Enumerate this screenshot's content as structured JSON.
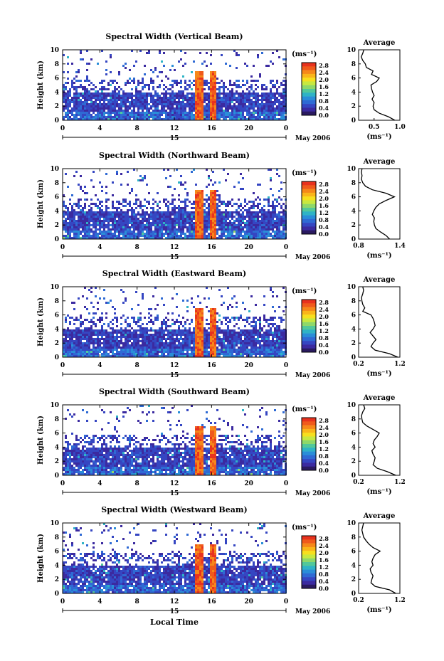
{
  "page": {
    "x_axis_title": "Local Time",
    "date_label": "May 2006",
    "day_label": "15"
  },
  "colorbar": {
    "unit": "(ms⁻¹)",
    "ticks": [
      "2.8",
      "2.4",
      "2.0",
      "1.6",
      "1.2",
      "0.8",
      "0.4",
      "0.0"
    ],
    "colors": [
      "#e8321e",
      "#f05a1c",
      "#f6881a",
      "#fab51a",
      "#f7df1e",
      "#c8e840",
      "#8ed86a",
      "#52c89a",
      "#2fb3c6",
      "#2a8ed8",
      "#2f6ad4",
      "#3546c2",
      "#3b2aa0",
      "#2a1a60"
    ]
  },
  "chart_data": [
    {
      "type": "heatmap",
      "title": "Spectral Width (Vertical Beam)",
      "xlabel": "",
      "ylabel": "Height (km)",
      "xlim": [
        0,
        24
      ],
      "ylim": [
        0,
        10
      ],
      "xticks": [
        "0",
        "4",
        "8",
        "12",
        "16",
        "20",
        "0"
      ],
      "yticks": [
        "0",
        "2",
        "4",
        "6",
        "8",
        "10"
      ],
      "color_scale_ms": [
        0.0,
        2.8
      ],
      "profile": {
        "title": "Average",
        "xlabel": "(ms⁻¹)",
        "xlim": [
          0.2,
          1.0
        ],
        "xticks": [
          "0.5",
          "1.0"
        ],
        "height_km": [
          0,
          0.5,
          1,
          1.5,
          2,
          2.5,
          3,
          3.5,
          4,
          4.5,
          5,
          5.5,
          6,
          6.5,
          7,
          7.5,
          8,
          8.5,
          9,
          9.5,
          10
        ],
        "width_ms": [
          0.9,
          0.78,
          0.6,
          0.5,
          0.48,
          0.5,
          0.46,
          0.5,
          0.47,
          0.45,
          0.44,
          0.55,
          0.6,
          0.45,
          0.48,
          0.35,
          0.33,
          0.28,
          0.25,
          0.28,
          0.3
        ]
      }
    },
    {
      "type": "heatmap",
      "title": "Spectral Width (Northward Beam)",
      "xlabel": "",
      "ylabel": "Height (km)",
      "xlim": [
        0,
        24
      ],
      "ylim": [
        0,
        10
      ],
      "xticks": [
        "0",
        "4",
        "8",
        "12",
        "16",
        "20",
        "0"
      ],
      "yticks": [
        "0",
        "2",
        "4",
        "6",
        "8",
        "10"
      ],
      "color_scale_ms": [
        0.0,
        2.8
      ],
      "profile": {
        "title": "Average",
        "xlabel": "(ms⁻¹)",
        "xlim": [
          0.8,
          1.4
        ],
        "xticks": [
          "0.8",
          "1.4"
        ],
        "height_km": [
          0,
          0.5,
          1,
          1.5,
          2,
          2.5,
          3,
          3.5,
          4,
          4.5,
          5,
          5.5,
          6,
          6.5,
          7,
          7.5,
          8,
          8.5,
          9,
          9.5,
          10
        ],
        "width_ms": [
          1.25,
          1.2,
          1.12,
          1.05,
          1.03,
          1.02,
          1.03,
          1.0,
          1.02,
          1.05,
          1.1,
          1.2,
          1.32,
          1.2,
          1.0,
          0.9,
          0.86,
          0.84,
          0.85,
          0.84,
          0.85
        ]
      }
    },
    {
      "type": "heatmap",
      "title": "Spectral Width (Eastward Beam)",
      "xlabel": "",
      "ylabel": "Height (km)",
      "xlim": [
        0,
        24
      ],
      "ylim": [
        0,
        10
      ],
      "xticks": [
        "0",
        "4",
        "8",
        "12",
        "16",
        "20",
        "0"
      ],
      "yticks": [
        "0",
        "2",
        "4",
        "6",
        "8",
        "10"
      ],
      "color_scale_ms": [
        0.0,
        2.8
      ],
      "profile": {
        "title": "Average",
        "xlabel": "(ms⁻¹)",
        "xlim": [
          0.2,
          1.2
        ],
        "xticks": [
          "0.2",
          "1.2"
        ],
        "height_km": [
          0,
          0.5,
          1,
          1.5,
          2,
          2.5,
          3,
          3.5,
          4,
          4.5,
          5,
          5.5,
          6,
          6.5,
          7,
          7.5,
          8,
          8.5,
          9,
          9.5,
          10
        ],
        "width_ms": [
          1.15,
          0.95,
          0.6,
          0.5,
          0.55,
          0.62,
          0.55,
          0.48,
          0.55,
          0.6,
          0.58,
          0.55,
          0.5,
          0.3,
          0.35,
          0.3,
          0.28,
          0.27,
          0.3,
          0.32,
          0.3
        ]
      }
    },
    {
      "type": "heatmap",
      "title": "Spectral Width (Southward Beam)",
      "xlabel": "",
      "ylabel": "Height (km)",
      "xlim": [
        0,
        24
      ],
      "ylim": [
        0,
        10
      ],
      "xticks": [
        "0",
        "4",
        "8",
        "12",
        "16",
        "20",
        "0"
      ],
      "yticks": [
        "0",
        "2",
        "4",
        "6",
        "8",
        "10"
      ],
      "color_scale_ms": [
        0.0,
        2.8
      ],
      "profile": {
        "title": "Average",
        "xlabel": "(ms⁻¹)",
        "xlim": [
          0.2,
          1.2
        ],
        "xticks": [
          "0.2",
          "1.2"
        ],
        "height_km": [
          0,
          0.5,
          1,
          1.5,
          2,
          2.5,
          3,
          3.5,
          4,
          4.5,
          5,
          5.5,
          6,
          6.5,
          7,
          7.5,
          8,
          8.5,
          9,
          9.5,
          10
        ],
        "width_ms": [
          1.1,
          0.9,
          0.65,
          0.55,
          0.58,
          0.6,
          0.55,
          0.52,
          0.6,
          0.55,
          0.58,
          0.65,
          0.7,
          0.55,
          0.4,
          0.3,
          0.28,
          0.27,
          0.3,
          0.35,
          0.32
        ]
      }
    },
    {
      "type": "heatmap",
      "title": "Spectral Width (Westward Beam)",
      "xlabel": "Local Time",
      "ylabel": "Height (km)",
      "xlim": [
        0,
        24
      ],
      "ylim": [
        0,
        10
      ],
      "xticks": [
        "0",
        "4",
        "8",
        "12",
        "16",
        "20",
        "0"
      ],
      "yticks": [
        "0",
        "2",
        "4",
        "6",
        "8",
        "10"
      ],
      "color_scale_ms": [
        0.0,
        2.8
      ],
      "profile": {
        "title": "Average",
        "xlabel": "(ms⁻¹)",
        "xlim": [
          0.2,
          1.2
        ],
        "xticks": [
          "0.2",
          "1.2"
        ],
        "height_km": [
          0,
          0.5,
          1,
          1.5,
          2,
          2.5,
          3,
          3.5,
          4,
          4.5,
          5,
          5.5,
          6,
          6.5,
          7,
          7.5,
          8,
          8.5,
          9,
          9.5,
          10
        ],
        "width_ms": [
          1.1,
          0.95,
          0.6,
          0.5,
          0.52,
          0.55,
          0.5,
          0.48,
          0.55,
          0.52,
          0.55,
          0.6,
          0.72,
          0.55,
          0.45,
          0.38,
          0.32,
          0.3,
          0.28,
          0.3,
          0.32
        ]
      }
    }
  ]
}
